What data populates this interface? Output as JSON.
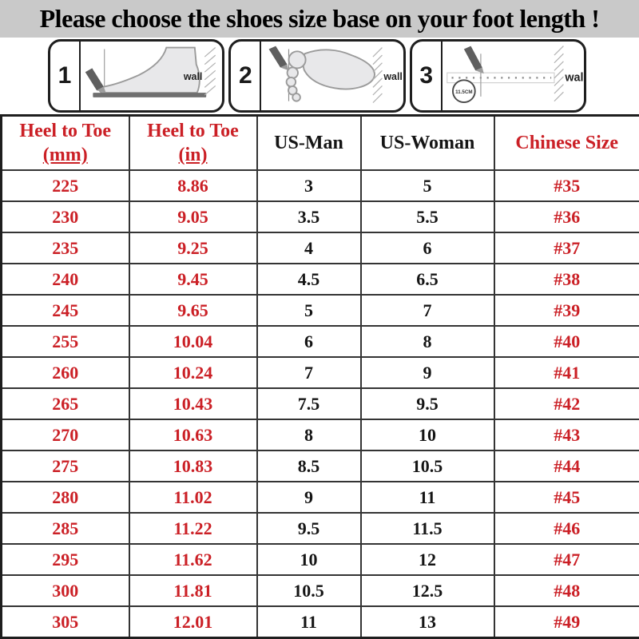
{
  "title": "Please choose the shoes size base on your foot length !",
  "instructions": {
    "steps": [
      {
        "number": "1",
        "wall_label": "wall"
      },
      {
        "number": "2",
        "wall_label": "wall"
      },
      {
        "number": "3",
        "wall_label": "wall",
        "measure_label": "11.5CM"
      }
    ]
  },
  "table": {
    "headers": [
      {
        "line1": "Heel to Toe",
        "line2": "(mm)"
      },
      {
        "line1": "Heel to Toe",
        "line2": "(in)"
      },
      {
        "line1": "US-Man"
      },
      {
        "line1": "US-Woman"
      },
      {
        "line1": "Chinese Size"
      }
    ],
    "column_styles": [
      "red",
      "red",
      "dark",
      "dark",
      "red"
    ]
  },
  "chart_data": {
    "type": "table",
    "title": "Please choose the shoes size base on your foot length !",
    "columns": [
      "Heel to Toe (mm)",
      "Heel to Toe (in)",
      "US-Man",
      "US-Woman",
      "Chinese Size"
    ],
    "rows": [
      [
        "225",
        "8.86",
        "3",
        "5",
        "#35"
      ],
      [
        "230",
        "9.05",
        "3.5",
        "5.5",
        "#36"
      ],
      [
        "235",
        "9.25",
        "4",
        "6",
        "#37"
      ],
      [
        "240",
        "9.45",
        "4.5",
        "6.5",
        "#38"
      ],
      [
        "245",
        "9.65",
        "5",
        "7",
        "#39"
      ],
      [
        "255",
        "10.04",
        "6",
        "8",
        "#40"
      ],
      [
        "260",
        "10.24",
        "7",
        "9",
        "#41"
      ],
      [
        "265",
        "10.43",
        "7.5",
        "9.5",
        "#42"
      ],
      [
        "270",
        "10.63",
        "8",
        "10",
        "#43"
      ],
      [
        "275",
        "10.83",
        "8.5",
        "10.5",
        "#44"
      ],
      [
        "280",
        "11.02",
        "9",
        "11",
        "#45"
      ],
      [
        "285",
        "11.22",
        "9.5",
        "11.5",
        "#46"
      ],
      [
        "295",
        "11.62",
        "10",
        "12",
        "#47"
      ],
      [
        "300",
        "11.81",
        "10.5",
        "12.5",
        "#48"
      ],
      [
        "305",
        "12.01",
        "11",
        "13",
        "#49"
      ]
    ]
  },
  "colors": {
    "accent_red": "#cb2026",
    "text_black": "#151515",
    "title_bg": "#c9c9c9"
  }
}
